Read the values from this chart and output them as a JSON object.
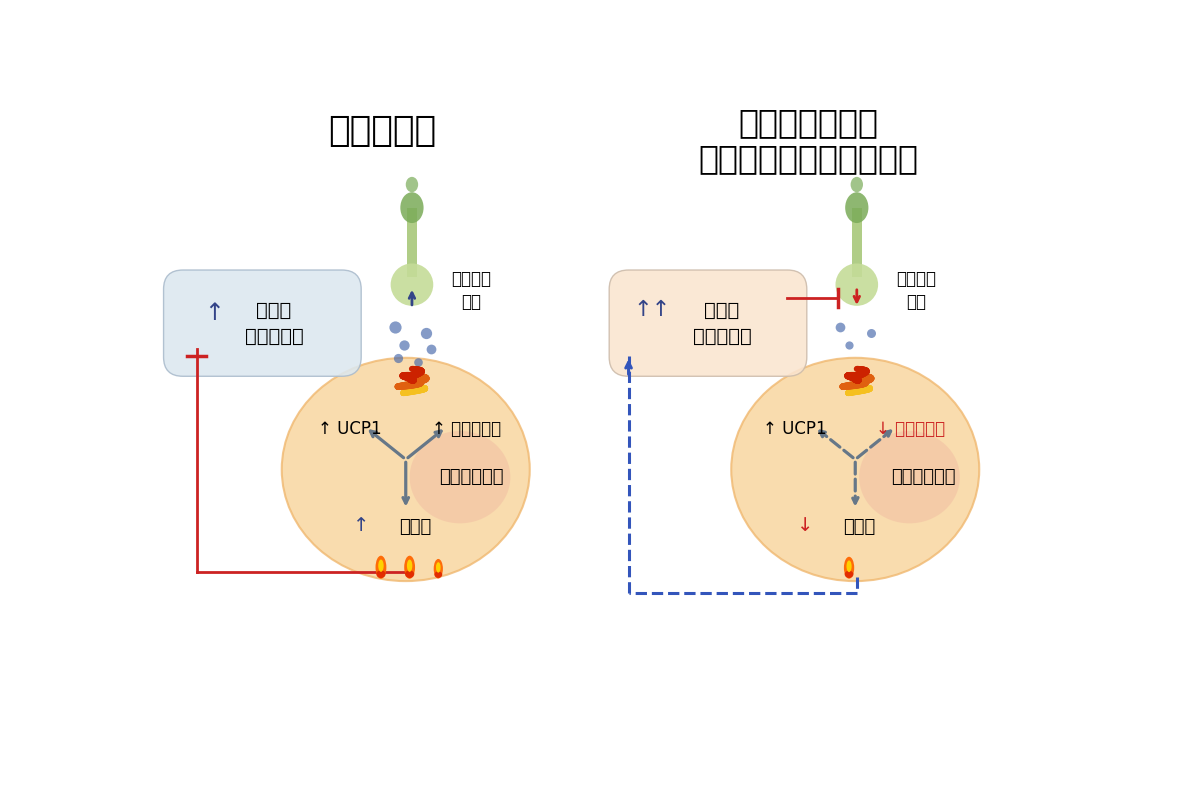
{
  "title_left": "正常な状態",
  "title_right_l1": "褐色脂肪細胞の",
  "title_right_l2": "体内時計が働かない状態",
  "bg_color": "#ffffff",
  "box_left_color": "#dce8f0",
  "box_right_color": "#fae5d0",
  "nerve_green_dark": "#7aab58",
  "nerve_green_light": "#a8c87a",
  "nerve_green_pale": "#c5dc98",
  "cell_orange_light": "#f8d49a",
  "cell_orange_mid": "#f0b870",
  "cell_orange_dark": "#e8956a",
  "cell_pink": "#f0b8a0",
  "coil_yellow": "#f5c020",
  "coil_orange": "#e06010",
  "coil_red": "#cc2200",
  "dot_blue": "#4466aa",
  "arrow_gray": "#667788",
  "red_col": "#cc2222",
  "blue_col": "#3355bb"
}
